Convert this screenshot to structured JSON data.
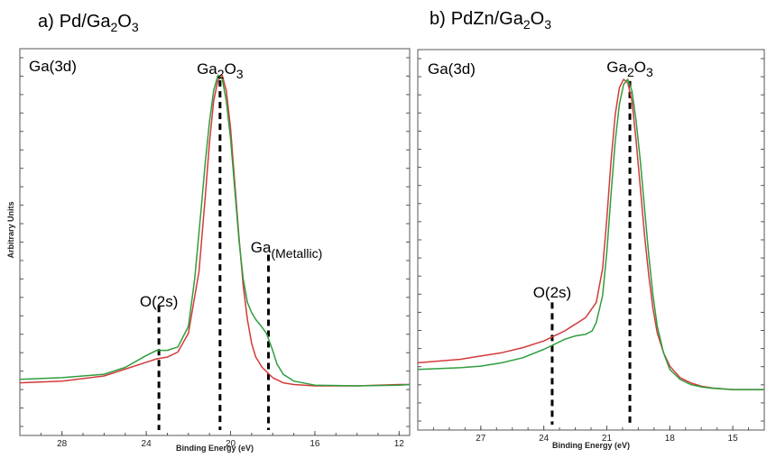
{
  "chart_data": [
    {
      "type": "line",
      "title": "a)  Pd/Ga2O3",
      "title_parts": {
        "tag": "a)",
        "prefix": "Pd/Ga",
        "sub1": "2",
        "mid": "O",
        "sub2": "3"
      },
      "region_label": "Ga(3d)",
      "ylabel": "Arbitrary Units",
      "xlabel": "Binding Energy (eV)",
      "xlim": [
        30,
        11.5
      ],
      "ylim": [
        0,
        1
      ],
      "x_reversed": true,
      "x_ticks": [
        28,
        24,
        20,
        16,
        12
      ],
      "grid": false,
      "markers": [
        {
          "name": "o2s",
          "label": "O(2s)",
          "x": 23.4,
          "y_bottom": 0.03,
          "y_top": 0.3
        },
        {
          "name": "ga2o3",
          "label_parts": {
            "base": "Ga",
            "sub1": "2",
            "mid": "O",
            "sub2": "3"
          },
          "x": 20.5,
          "y_bottom": 0.03,
          "y_top": 0.96
        },
        {
          "name": "ga-metallic",
          "label_parts": {
            "base": "Ga",
            "sub": "(Metallic)"
          },
          "x": 18.2,
          "y_bottom": 0.03,
          "y_top": 0.45
        }
      ],
      "series": [
        {
          "color": "#d43a3a",
          "x": [
            30,
            28,
            26,
            25,
            24,
            23.5,
            23,
            22.5,
            22,
            21.5,
            21.2,
            21,
            20.8,
            20.6,
            20.4,
            20.2,
            20,
            19.8,
            19.6,
            19.4,
            19.2,
            19,
            18.8,
            18.5,
            18,
            17.5,
            17,
            16,
            14,
            12,
            11.5
          ],
          "y": [
            0.075,
            0.08,
            0.095,
            0.115,
            0.135,
            0.145,
            0.15,
            0.165,
            0.22,
            0.4,
            0.62,
            0.78,
            0.9,
            0.96,
            0.975,
            0.93,
            0.82,
            0.66,
            0.5,
            0.36,
            0.26,
            0.19,
            0.15,
            0.12,
            0.09,
            0.075,
            0.07,
            0.066,
            0.066,
            0.07,
            0.07
          ]
        },
        {
          "color": "#2e9e3e",
          "x": [
            30,
            28,
            26,
            25,
            24,
            23.5,
            23,
            22.5,
            22,
            21.7,
            21.4,
            21.2,
            21,
            20.8,
            20.6,
            20.4,
            20.2,
            20,
            19.8,
            19.6,
            19.4,
            19.2,
            19,
            18.8,
            18.6,
            18.3,
            18,
            17.8,
            17.5,
            17,
            16,
            14,
            12,
            11.5
          ],
          "y": [
            0.085,
            0.09,
            0.1,
            0.12,
            0.155,
            0.17,
            0.17,
            0.18,
            0.24,
            0.38,
            0.58,
            0.72,
            0.84,
            0.93,
            0.975,
            0.965,
            0.9,
            0.79,
            0.64,
            0.49,
            0.38,
            0.31,
            0.28,
            0.26,
            0.245,
            0.22,
            0.17,
            0.13,
            0.1,
            0.08,
            0.068,
            0.066,
            0.068,
            0.07
          ]
        }
      ]
    },
    {
      "type": "line",
      "title": "b)  PdZn/Ga2O3",
      "title_parts": {
        "tag": "b)",
        "prefix": "PdZn/Ga",
        "sub1": "2",
        "mid": "O",
        "sub2": "3"
      },
      "region_label": "Ga(3d)",
      "ylabel": "",
      "xlabel": "Binding Energy (eV)",
      "xlim": [
        30,
        13.5
      ],
      "ylim": [
        0,
        1
      ],
      "x_reversed": true,
      "x_ticks": [
        27,
        24,
        21,
        18,
        15
      ],
      "grid": false,
      "markers": [
        {
          "name": "o2s",
          "label": "O(2s)",
          "x": 23.6,
          "y_bottom": 0.0,
          "y_top": 0.3
        },
        {
          "name": "ga2o3",
          "label_parts": {
            "base": "Ga",
            "sub1": "2",
            "mid": "O",
            "sub2": "3"
          },
          "x": 19.9,
          "y_bottom": 0.0,
          "y_top": 0.96
        }
      ],
      "series": [
        {
          "color": "#d43a3a",
          "x": [
            30,
            28,
            27,
            26,
            25,
            24,
            23.5,
            23,
            22.5,
            22,
            21.5,
            21.2,
            21,
            20.8,
            20.6,
            20.4,
            20.2,
            20,
            19.8,
            19.6,
            19.4,
            19.2,
            19,
            18.8,
            18.6,
            18.3,
            18,
            17.5,
            17,
            16.5,
            16,
            15,
            14,
            13.5
          ],
          "y": [
            0.12,
            0.13,
            0.14,
            0.15,
            0.165,
            0.185,
            0.2,
            0.215,
            0.235,
            0.255,
            0.3,
            0.4,
            0.55,
            0.72,
            0.86,
            0.94,
            0.965,
            0.955,
            0.9,
            0.78,
            0.64,
            0.5,
            0.38,
            0.28,
            0.21,
            0.15,
            0.11,
            0.075,
            0.06,
            0.05,
            0.045,
            0.04,
            0.04,
            0.04
          ]
        },
        {
          "color": "#2e9e3e",
          "x": [
            30,
            28,
            27,
            26,
            25,
            24,
            23.5,
            23,
            22.5,
            22,
            21.7,
            21.5,
            21.2,
            21,
            20.8,
            20.6,
            20.4,
            20.2,
            20,
            19.8,
            19.6,
            19.4,
            19.2,
            19,
            18.8,
            18.6,
            18.3,
            18,
            17.5,
            17,
            16.5,
            16,
            15,
            14,
            13.5
          ],
          "y": [
            0.1,
            0.105,
            0.11,
            0.12,
            0.135,
            0.16,
            0.175,
            0.19,
            0.2,
            0.205,
            0.215,
            0.24,
            0.32,
            0.45,
            0.62,
            0.78,
            0.89,
            0.95,
            0.965,
            0.93,
            0.84,
            0.72,
            0.58,
            0.44,
            0.32,
            0.23,
            0.15,
            0.1,
            0.07,
            0.055,
            0.048,
            0.044,
            0.04,
            0.04,
            0.04
          ]
        }
      ]
    }
  ]
}
